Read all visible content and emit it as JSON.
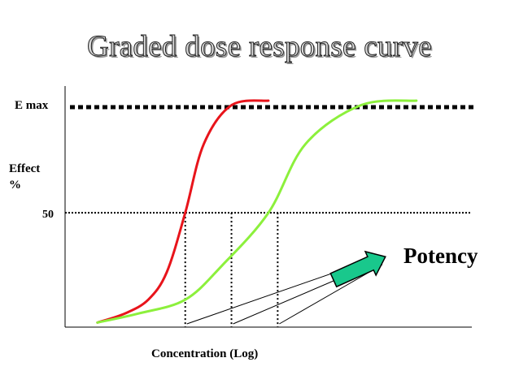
{
  "title": "Graded dose response curve",
  "labels": {
    "emax": "E max",
    "effect_line1": "Effect",
    "effect_line2": "%",
    "fifty": "50",
    "potency": "Potency",
    "xlabel": "Concentration (Log)"
  },
  "colors": {
    "curve_a": "#e8141b",
    "curve_b": "#8cf03c",
    "arrow_fill": "#19c88c",
    "reference": "#000000"
  },
  "chart_data": {
    "type": "line",
    "title": "Graded dose response curve",
    "xlabel": "Concentration (Log)",
    "ylabel": "Effect %",
    "y_ticks": [
      "50"
    ],
    "emax_label": "E max",
    "series": [
      {
        "color": "#e8141b",
        "points": [
          [
            0.7,
            2
          ],
          [
            1.3,
            6
          ],
          [
            1.8,
            12
          ],
          [
            2.2,
            24
          ],
          [
            2.6,
            50
          ],
          [
            3.0,
            80
          ],
          [
            3.6,
            97
          ],
          [
            4.4,
            99
          ]
        ]
      },
      {
        "color": "#8cf03c",
        "points": [
          [
            0.7,
            2
          ],
          [
            1.6,
            6
          ],
          [
            2.6,
            12
          ],
          [
            3.4,
            27
          ],
          [
            4.4,
            50
          ],
          [
            5.2,
            80
          ],
          [
            6.4,
            97
          ],
          [
            7.6,
            99
          ]
        ]
      }
    ],
    "reference_lines": [
      {
        "kind": "horizontal",
        "y": 106,
        "label": "E max"
      },
      {
        "kind": "horizontal",
        "y": 50,
        "label": "50"
      },
      {
        "kind": "vertical",
        "x": 2.6
      },
      {
        "kind": "vertical",
        "x": 3.6
      },
      {
        "kind": "vertical",
        "x": 4.6
      }
    ],
    "annotation": "Potency",
    "xlim": [
      0,
      8.8
    ],
    "ylim": [
      0,
      110
    ],
    "grid": false
  }
}
